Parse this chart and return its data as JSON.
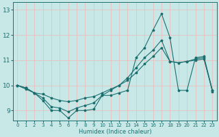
{
  "title": "",
  "xlabel": "Humidex (Indice chaleur)",
  "xlim": [
    -0.5,
    23.5
  ],
  "ylim": [
    8.6,
    13.3
  ],
  "yticks": [
    9,
    10,
    11,
    12,
    13
  ],
  "xticks": [
    0,
    1,
    2,
    3,
    4,
    5,
    6,
    7,
    8,
    9,
    10,
    11,
    12,
    13,
    14,
    15,
    16,
    17,
    18,
    19,
    20,
    21,
    22,
    23
  ],
  "bg_color": "#c8e8e8",
  "grid_color": "#e8c0c0",
  "line_color": "#1a6e6e",
  "line1_y": [
    10.0,
    9.9,
    9.7,
    9.4,
    9.0,
    9.0,
    8.7,
    9.0,
    9.0,
    9.05,
    9.6,
    9.6,
    9.7,
    9.8,
    11.1,
    11.5,
    12.2,
    12.85,
    11.9,
    9.8,
    9.8,
    11.1,
    11.15,
    9.8
  ],
  "line2_y": [
    10.0,
    9.9,
    9.7,
    9.5,
    9.15,
    9.1,
    8.95,
    9.1,
    9.2,
    9.3,
    9.6,
    9.8,
    10.0,
    10.3,
    10.7,
    11.1,
    11.4,
    11.8,
    10.95,
    10.9,
    10.95,
    11.05,
    11.1,
    9.75
  ],
  "line3_y": [
    10.0,
    9.85,
    9.7,
    9.65,
    9.5,
    9.4,
    9.35,
    9.4,
    9.5,
    9.55,
    9.7,
    9.85,
    10.0,
    10.2,
    10.5,
    10.85,
    11.15,
    11.5,
    10.95,
    10.9,
    10.95,
    11.0,
    11.05,
    9.8
  ]
}
